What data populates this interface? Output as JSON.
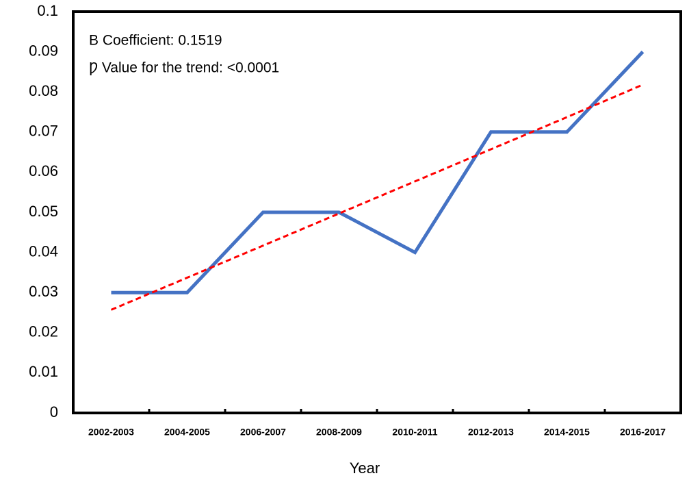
{
  "chart_data": {
    "type": "line",
    "x_label": "Year",
    "annotations": [
      "B Coefficient: 0.1519",
      "Ƿ Value for the trend: <0.0001"
    ],
    "categories": [
      "2002-2003",
      "2004-2005",
      "2006-2007",
      "2008-2009",
      "2010-2011",
      "2012-2013",
      "2014-2015",
      "2016-2017"
    ],
    "series": [
      {
        "color": "#4472c4",
        "style": "solid",
        "values": [
          0.03,
          0.03,
          0.05,
          0.05,
          0.04,
          0.07,
          0.07,
          0.09
        ]
      },
      {
        "color": "#ff0000",
        "style": "dashed",
        "values": [
          0.0257,
          0.0337,
          0.0417,
          0.0497,
          0.0577,
          0.0657,
          0.0737,
          0.0818
        ]
      }
    ],
    "ylim": [
      0,
      0.1
    ],
    "yticks": [
      0,
      0.01,
      0.02,
      0.03,
      0.04,
      0.05,
      0.06,
      0.07,
      0.08,
      0.09,
      0.1
    ],
    "grid": false
  }
}
